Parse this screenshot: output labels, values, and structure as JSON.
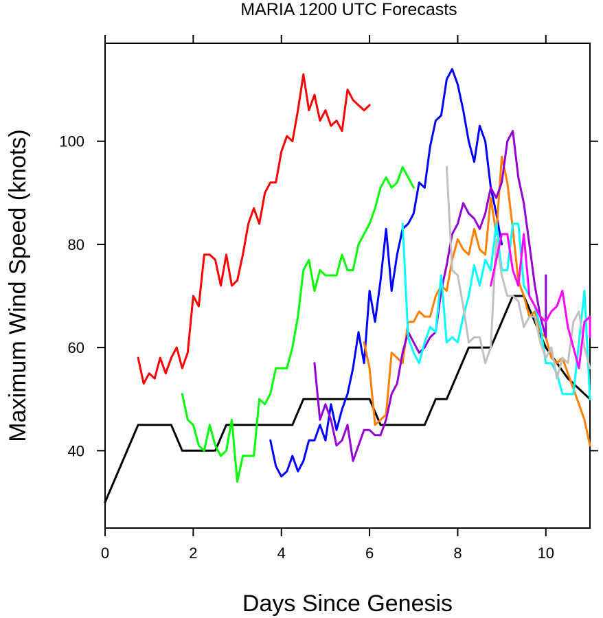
{
  "chart_data": {
    "type": "line",
    "title": "MARIA 1200 UTC Forecasts",
    "xlabel": "Days Since Genesis",
    "ylabel": "Maximum Wind Speed (knots)",
    "xlim": [
      0,
      11
    ],
    "ylim": [
      25,
      119
    ],
    "x_ticks": [
      0,
      2,
      4,
      6,
      8,
      10
    ],
    "y_ticks": [
      40,
      60,
      80,
      100
    ],
    "grid": false,
    "legend": "none",
    "series": [
      {
        "color": "#000000",
        "points": [
          [
            0,
            30
          ],
          [
            0.75,
            45
          ],
          [
            1.5,
            45
          ],
          [
            1.75,
            40
          ],
          [
            2.5,
            40
          ],
          [
            2.75,
            45
          ],
          [
            4.25,
            45
          ],
          [
            4.5,
            50
          ],
          [
            6,
            50
          ],
          [
            6.25,
            45
          ],
          [
            7.25,
            45
          ],
          [
            7.5,
            50
          ],
          [
            7.75,
            50
          ],
          [
            8.25,
            60
          ],
          [
            8.75,
            60
          ],
          [
            9.25,
            70
          ],
          [
            9.5,
            70
          ],
          [
            9.75,
            65
          ],
          [
            10,
            60
          ],
          [
            10.25,
            57
          ],
          [
            10.5,
            54
          ],
          [
            11,
            50
          ]
        ]
      },
      {
        "color": "#ff0000",
        "points": [
          [
            0.75,
            58
          ],
          [
            0.875,
            53
          ],
          [
            1,
            55
          ],
          [
            1.125,
            54
          ],
          [
            1.25,
            58
          ],
          [
            1.375,
            55
          ],
          [
            1.5,
            58
          ],
          [
            1.625,
            60
          ],
          [
            1.75,
            56
          ],
          [
            1.875,
            59
          ],
          [
            2,
            70
          ],
          [
            2.125,
            68
          ],
          [
            2.25,
            78
          ],
          [
            2.375,
            78
          ],
          [
            2.5,
            77
          ],
          [
            2.625,
            72
          ],
          [
            2.75,
            78
          ],
          [
            2.875,
            72
          ],
          [
            3,
            73
          ],
          [
            3.125,
            78
          ],
          [
            3.25,
            84
          ],
          [
            3.375,
            87
          ],
          [
            3.5,
            84
          ],
          [
            3.625,
            90
          ],
          [
            3.75,
            92
          ],
          [
            3.875,
            92
          ],
          [
            4,
            98
          ],
          [
            4.125,
            101
          ],
          [
            4.25,
            100
          ],
          [
            4.375,
            106
          ],
          [
            4.5,
            113
          ],
          [
            4.625,
            106
          ],
          [
            4.75,
            109
          ],
          [
            4.875,
            104
          ],
          [
            5,
            106
          ],
          [
            5.125,
            103
          ],
          [
            5.25,
            104
          ],
          [
            5.375,
            102
          ],
          [
            5.5,
            110
          ],
          [
            5.625,
            108
          ],
          [
            5.75,
            107
          ],
          [
            5.875,
            106
          ],
          [
            6,
            107
          ]
        ]
      },
      {
        "color": "#00ff00",
        "points": [
          [
            1.75,
            51
          ],
          [
            1.875,
            46
          ],
          [
            2,
            45
          ],
          [
            2.125,
            41
          ],
          [
            2.25,
            40
          ],
          [
            2.375,
            45
          ],
          [
            2.5,
            41
          ],
          [
            2.625,
            39
          ],
          [
            2.75,
            40
          ],
          [
            2.875,
            46
          ],
          [
            3,
            34
          ],
          [
            3.125,
            39
          ],
          [
            3.25,
            39
          ],
          [
            3.375,
            39
          ],
          [
            3.5,
            50
          ],
          [
            3.625,
            49
          ],
          [
            3.75,
            51
          ],
          [
            3.875,
            56
          ],
          [
            4,
            56
          ],
          [
            4.125,
            56
          ],
          [
            4.25,
            60
          ],
          [
            4.375,
            66
          ],
          [
            4.5,
            75
          ],
          [
            4.625,
            77
          ],
          [
            4.75,
            71
          ],
          [
            4.875,
            75
          ],
          [
            5,
            74
          ],
          [
            5.125,
            74
          ],
          [
            5.25,
            74
          ],
          [
            5.375,
            78
          ],
          [
            5.5,
            75
          ],
          [
            5.625,
            75
          ],
          [
            5.75,
            80
          ],
          [
            5.875,
            82
          ],
          [
            6,
            84
          ],
          [
            6.125,
            87
          ],
          [
            6.25,
            91
          ],
          [
            6.375,
            93
          ],
          [
            6.5,
            91
          ],
          [
            6.625,
            92
          ],
          [
            6.75,
            95
          ],
          [
            6.875,
            93
          ],
          [
            7,
            91
          ]
        ]
      },
      {
        "color": "#0000ff",
        "points": [
          [
            3.75,
            42
          ],
          [
            3.875,
            37
          ],
          [
            4,
            35
          ],
          [
            4.125,
            36
          ],
          [
            4.25,
            39
          ],
          [
            4.375,
            36
          ],
          [
            4.5,
            38
          ],
          [
            4.625,
            42
          ],
          [
            4.75,
            42
          ],
          [
            4.875,
            45
          ],
          [
            5,
            42
          ],
          [
            5.125,
            49
          ],
          [
            5.25,
            44
          ],
          [
            5.375,
            48
          ],
          [
            5.5,
            51
          ],
          [
            5.625,
            56
          ],
          [
            5.75,
            63
          ],
          [
            5.875,
            57
          ],
          [
            6,
            71
          ],
          [
            6.125,
            65
          ],
          [
            6.25,
            73
          ],
          [
            6.375,
            83
          ],
          [
            6.5,
            71
          ],
          [
            6.625,
            78
          ],
          [
            6.75,
            83
          ],
          [
            6.875,
            84
          ],
          [
            7,
            86
          ],
          [
            7.125,
            92
          ],
          [
            7.25,
            91
          ],
          [
            7.375,
            99
          ],
          [
            7.5,
            104
          ],
          [
            7.625,
            105
          ],
          [
            7.75,
            112
          ],
          [
            7.875,
            114
          ],
          [
            8,
            111
          ],
          [
            8.125,
            106
          ],
          [
            8.25,
            100
          ],
          [
            8.375,
            96
          ],
          [
            8.5,
            103
          ],
          [
            8.625,
            100
          ],
          [
            8.75,
            91
          ],
          [
            8.875,
            86
          ],
          [
            9,
            80
          ]
        ]
      },
      {
        "color": "#ff8000",
        "points": [
          [
            5.875,
            61
          ],
          [
            6,
            56
          ],
          [
            6.125,
            45
          ],
          [
            6.25,
            46
          ],
          [
            6.375,
            47
          ],
          [
            6.5,
            59
          ],
          [
            6.625,
            58
          ],
          [
            6.75,
            57
          ],
          [
            6.875,
            65
          ],
          [
            7,
            65
          ],
          [
            7.125,
            67
          ],
          [
            7.25,
            66
          ],
          [
            7.375,
            66
          ],
          [
            7.5,
            70
          ],
          [
            7.625,
            72
          ],
          [
            7.75,
            71
          ],
          [
            7.875,
            77
          ],
          [
            8,
            81
          ],
          [
            8.125,
            79
          ],
          [
            8.25,
            78
          ],
          [
            8.375,
            83
          ],
          [
            8.5,
            79
          ],
          [
            8.625,
            78
          ],
          [
            8.75,
            89
          ],
          [
            8.875,
            82
          ],
          [
            9,
            97
          ],
          [
            9.125,
            92
          ],
          [
            9.25,
            83
          ],
          [
            9.375,
            73
          ],
          [
            9.5,
            70
          ],
          [
            9.625,
            66
          ],
          [
            9.75,
            67
          ],
          [
            9.875,
            63
          ],
          [
            10,
            62
          ],
          [
            10.125,
            58
          ],
          [
            10.25,
            57
          ],
          [
            10.375,
            58
          ],
          [
            10.5,
            55
          ],
          [
            10.625,
            52
          ],
          [
            10.75,
            49
          ],
          [
            10.875,
            46
          ],
          [
            11,
            41
          ]
        ]
      },
      {
        "color": "#9400d3",
        "points": [
          [
            4.75,
            57
          ],
          [
            4.875,
            46
          ],
          [
            5,
            49
          ],
          [
            5.125,
            46
          ],
          [
            5.25,
            41
          ],
          [
            5.375,
            42
          ],
          [
            5.5,
            45
          ],
          [
            5.625,
            38
          ],
          [
            5.75,
            41
          ],
          [
            5.875,
            44
          ],
          [
            6,
            44
          ],
          [
            6.125,
            43
          ],
          [
            6.25,
            43
          ],
          [
            6.375,
            46
          ],
          [
            6.5,
            51
          ],
          [
            6.625,
            53
          ],
          [
            6.75,
            59
          ],
          [
            6.875,
            63
          ],
          [
            7,
            61
          ],
          [
            7.125,
            59
          ],
          [
            7.25,
            60
          ],
          [
            7.375,
            62
          ],
          [
            7.5,
            63
          ],
          [
            7.625,
            71
          ],
          [
            7.75,
            76
          ],
          [
            7.875,
            82
          ],
          [
            8,
            84
          ],
          [
            8.125,
            88
          ],
          [
            8.25,
            86
          ],
          [
            8.375,
            85
          ],
          [
            8.5,
            83
          ],
          [
            8.625,
            86
          ],
          [
            8.75,
            91
          ],
          [
            8.875,
            89
          ],
          [
            9,
            92
          ],
          [
            9.125,
            100
          ],
          [
            9.25,
            102
          ],
          [
            9.375,
            93
          ],
          [
            9.5,
            88
          ],
          [
            9.625,
            80
          ],
          [
            9.75,
            72
          ],
          [
            9.875,
            66
          ],
          [
            10,
            62
          ],
          [
            10,
            74
          ]
        ]
      },
      {
        "color": "#00ffff",
        "points": [
          [
            6.75,
            84
          ],
          [
            6.875,
            62
          ],
          [
            7,
            59
          ],
          [
            7.125,
            57
          ],
          [
            7.25,
            61
          ],
          [
            7.375,
            64
          ],
          [
            7.5,
            63
          ],
          [
            7.625,
            74
          ],
          [
            7.75,
            61
          ],
          [
            7.875,
            62
          ],
          [
            8,
            61
          ],
          [
            8.125,
            66
          ],
          [
            8.25,
            70
          ],
          [
            8.375,
            76
          ],
          [
            8.5,
            72
          ],
          [
            8.625,
            77
          ],
          [
            8.75,
            75
          ],
          [
            8.875,
            84
          ],
          [
            9,
            75
          ],
          [
            9.125,
            75
          ],
          [
            9.25,
            84
          ],
          [
            9.375,
            84
          ],
          [
            9.5,
            72
          ],
          [
            9.625,
            70
          ],
          [
            9.75,
            68
          ],
          [
            9.875,
            64
          ],
          [
            10,
            57
          ],
          [
            10.125,
            57
          ],
          [
            10.25,
            55
          ],
          [
            10.375,
            51
          ],
          [
            10.5,
            51
          ],
          [
            10.625,
            51
          ],
          [
            10.75,
            61
          ],
          [
            10.875,
            71
          ],
          [
            11,
            50
          ]
        ]
      },
      {
        "color": "#c0c0c0",
        "points": [
          [
            7.75,
            95
          ],
          [
            7.875,
            75
          ],
          [
            8,
            74
          ],
          [
            8.125,
            68
          ],
          [
            8.25,
            61
          ],
          [
            8.375,
            62
          ],
          [
            8.5,
            62
          ],
          [
            8.625,
            57
          ],
          [
            8.75,
            60
          ],
          [
            8.875,
            81
          ],
          [
            9,
            74
          ],
          [
            9.125,
            70
          ],
          [
            9.25,
            70
          ],
          [
            9.375,
            69
          ],
          [
            9.5,
            64
          ],
          [
            9.625,
            66
          ],
          [
            9.75,
            66
          ],
          [
            9.875,
            61
          ],
          [
            10,
            58
          ],
          [
            10.125,
            60
          ],
          [
            10.25,
            54
          ],
          [
            10.375,
            58
          ],
          [
            10.5,
            57
          ],
          [
            10.625,
            65
          ],
          [
            10.75,
            67
          ],
          [
            10.875,
            60
          ],
          [
            11,
            56
          ]
        ]
      },
      {
        "color": "#ff00ff",
        "points": [
          [
            8.75,
            72
          ],
          [
            8.875,
            77
          ],
          [
            9,
            82
          ],
          [
            9.125,
            82
          ],
          [
            9.25,
            75
          ],
          [
            9.375,
            72
          ],
          [
            9.5,
            82
          ],
          [
            9.625,
            70
          ],
          [
            9.75,
            68
          ],
          [
            9.875,
            66
          ],
          [
            10,
            65
          ],
          [
            10.125,
            67
          ],
          [
            10.25,
            68
          ],
          [
            10.375,
            71
          ],
          [
            10.5,
            64
          ],
          [
            10.625,
            60
          ],
          [
            10.75,
            56
          ],
          [
            10.875,
            65
          ],
          [
            11,
            66
          ],
          [
            11,
            62
          ]
        ]
      }
    ]
  }
}
